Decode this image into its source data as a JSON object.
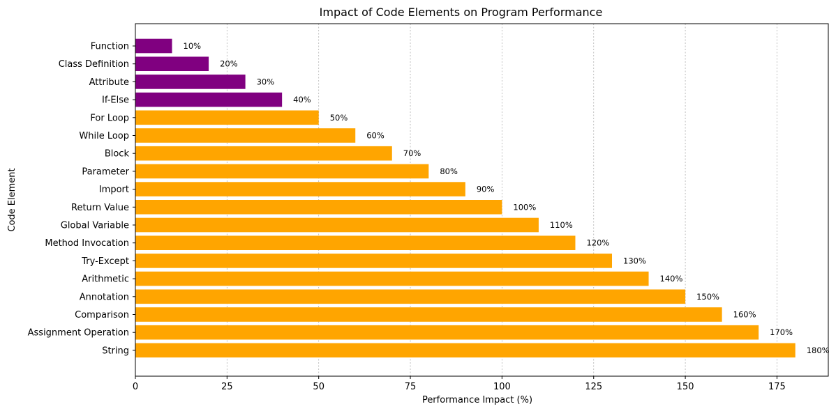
{
  "chart_data": {
    "type": "bar",
    "orientation": "horizontal",
    "title": "Impact of Code Elements on Program Performance",
    "xlabel": "Performance Impact (%)",
    "ylabel": "Code Element",
    "xlim": [
      0,
      189
    ],
    "xticks": [
      0,
      25,
      50,
      75,
      100,
      125,
      150,
      175
    ],
    "grid": "x-dotted",
    "categories": [
      "Function",
      "Class Definition",
      "Attribute",
      "If-Else",
      "For Loop",
      "While Loop",
      "Block",
      "Parameter",
      "Import",
      "Return Value",
      "Global Variable",
      "Method Invocation",
      "Try-Except",
      "Arithmetic",
      "Annotation",
      "Comparison",
      "Assignment Operation",
      "String"
    ],
    "values": [
      10,
      20,
      30,
      40,
      50,
      60,
      70,
      80,
      90,
      100,
      110,
      120,
      130,
      140,
      150,
      160,
      170,
      180
    ],
    "value_labels": [
      "10%",
      "20%",
      "30%",
      "40%",
      "50%",
      "60%",
      "70%",
      "80%",
      "90%",
      "100%",
      "110%",
      "120%",
      "130%",
      "140%",
      "150%",
      "160%",
      "170%",
      "180%"
    ],
    "colors": [
      "#800080",
      "#800080",
      "#800080",
      "#800080",
      "#FFA500",
      "#FFA500",
      "#FFA500",
      "#FFA500",
      "#FFA500",
      "#FFA500",
      "#FFA500",
      "#FFA500",
      "#FFA500",
      "#FFA500",
      "#FFA500",
      "#FFA500",
      "#FFA500",
      "#FFA500"
    ]
  }
}
